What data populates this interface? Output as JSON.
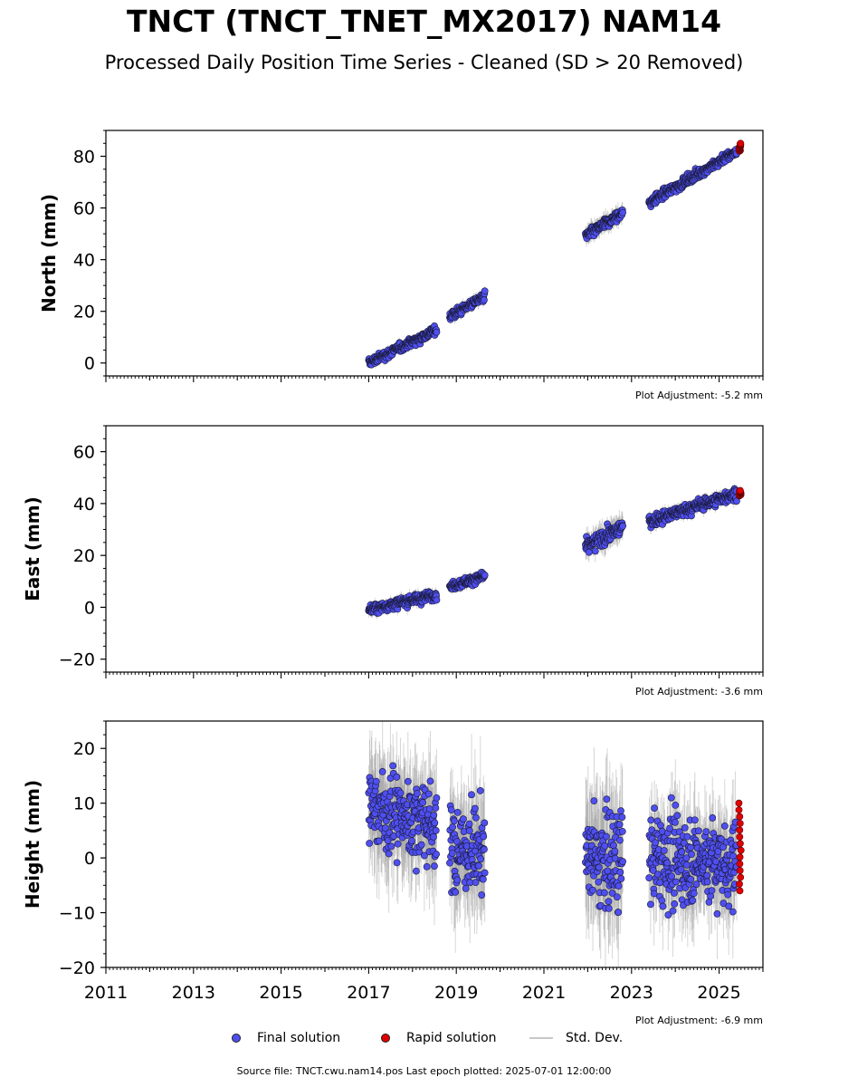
{
  "title": "TNCT (TNCT_TNET_MX2017) NAM14",
  "subtitle": "Processed Daily Position Time Series - Cleaned (SD > 20 Removed)",
  "legend": {
    "final_label": "Final solution",
    "rapid_label": "Rapid solution",
    "std_label": "Std. Dev."
  },
  "colors": {
    "final": "#4f4ff0",
    "rapid": "#e00000",
    "std": "#8a8a8a",
    "edge": "#1a1a3a"
  },
  "source_text": "Source file: TNCT.cwu.nam14.pos  Last epoch plotted: 2025-07-01 12:00:00",
  "chart_data": [
    {
      "type": "scatter",
      "ylabel": "North (mm)",
      "adjustment": "Plot Adjustment: -5.2 mm",
      "xlim": [
        2011,
        2026
      ],
      "ylim": [
        -5,
        90
      ],
      "yticks": [
        0,
        20,
        40,
        60,
        80
      ],
      "segments": [
        {
          "x": [
            2017.0,
            2018.55
          ],
          "y": [
            0,
            13
          ],
          "std": 1.5,
          "noise": 1.2
        },
        {
          "x": [
            2018.85,
            2019.65
          ],
          "y": [
            18,
            26
          ],
          "std": 2.0,
          "noise": 1.2
        },
        {
          "x": [
            2021.95,
            2022.8
          ],
          "y": [
            49,
            58
          ],
          "std": 3.0,
          "noise": 1.4
        },
        {
          "x": [
            2023.4,
            2025.4
          ],
          "y": [
            62,
            82
          ],
          "std": 1.5,
          "noise": 1.3
        }
      ],
      "rapid": {
        "x": [
          2025.45,
          2025.5
        ],
        "y": [
          82,
          85
        ]
      }
    },
    {
      "type": "scatter",
      "ylabel": "East (mm)",
      "adjustment": "Plot Adjustment: -3.6 mm",
      "xlim": [
        2011,
        2026
      ],
      "ylim": [
        -25,
        70
      ],
      "yticks": [
        -20,
        0,
        20,
        40,
        60
      ],
      "segments": [
        {
          "x": [
            2017.0,
            2018.55
          ],
          "y": [
            -1,
            5
          ],
          "std": 2.0,
          "noise": 1.3
        },
        {
          "x": [
            2018.85,
            2019.65
          ],
          "y": [
            8,
            12
          ],
          "std": 2.0,
          "noise": 1.2
        },
        {
          "x": [
            2021.95,
            2022.8
          ],
          "y": [
            23,
            31
          ],
          "std": 4.0,
          "noise": 2.0
        },
        {
          "x": [
            2023.4,
            2025.4
          ],
          "y": [
            33,
            44
          ],
          "std": 2.0,
          "noise": 1.6
        }
      ],
      "rapid": {
        "x": [
          2025.45,
          2025.5
        ],
        "y": [
          43,
          45
        ]
      }
    },
    {
      "type": "scatter",
      "ylabel": "Height (mm)",
      "adjustment": "Plot Adjustment: -6.9 mm",
      "xlim": [
        2011,
        2026
      ],
      "ylim": [
        -20,
        25
      ],
      "yticks": [
        -20,
        -10,
        0,
        10,
        20
      ],
      "xticks": [
        2011,
        2013,
        2015,
        2017,
        2019,
        2021,
        2023,
        2025
      ],
      "segments": [
        {
          "x": [
            2017.0,
            2018.55
          ],
          "y": [
            9,
            6
          ],
          "std": 8.0,
          "noise": 5.0
        },
        {
          "x": [
            2018.85,
            2019.65
          ],
          "y": [
            1,
            2
          ],
          "std": 8.0,
          "noise": 5.5
        },
        {
          "x": [
            2021.95,
            2022.8
          ],
          "y": [
            0,
            0
          ],
          "std": 9.0,
          "noise": 6.5
        },
        {
          "x": [
            2023.4,
            2025.4
          ],
          "y": [
            0,
            -1
          ],
          "std": 7.0,
          "noise": 5.5
        }
      ],
      "rapid": {
        "x": [
          2025.45,
          2025.5
        ],
        "y": [
          -6,
          10
        ]
      }
    }
  ]
}
